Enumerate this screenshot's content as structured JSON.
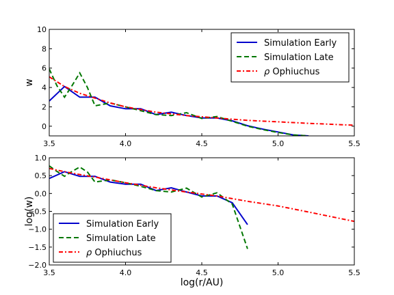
{
  "chart_data": [
    {
      "type": "line",
      "xlabel": "",
      "ylabel": "w",
      "xlim": [
        3.5,
        5.5
      ],
      "ylim": [
        -1,
        10
      ],
      "xticks": [
        "3.5",
        "4.0",
        "4.5",
        "5.0",
        "5.5"
      ],
      "yticks": [
        "0",
        "2",
        "4",
        "6",
        "8",
        "10"
      ],
      "legend": "top-right",
      "series": [
        {
          "name": "Simulation Early",
          "color": "#0000cc",
          "style": "solid",
          "x": [
            3.5,
            3.6,
            3.7,
            3.8,
            3.9,
            4.0,
            4.1,
            4.2,
            4.3,
            4.4,
            4.5,
            4.6,
            4.7,
            4.8,
            4.9,
            5.0,
            5.1,
            5.2
          ],
          "y": [
            2.6,
            4.1,
            3.0,
            3.0,
            2.1,
            1.8,
            1.8,
            1.2,
            1.45,
            1.1,
            0.85,
            0.85,
            0.55,
            0.05,
            -0.3,
            -0.6,
            -0.9,
            -1.0
          ]
        },
        {
          "name": "Simulation Late",
          "color": "#007700",
          "style": "dashed",
          "x": [
            3.5,
            3.55,
            3.6,
            3.65,
            3.7,
            3.75,
            3.8,
            3.9,
            4.0,
            4.1,
            4.2,
            4.3,
            4.4,
            4.5,
            4.6,
            4.7,
            4.8,
            4.9,
            5.0,
            5.1,
            5.2
          ],
          "y": [
            5.9,
            4.2,
            3.0,
            4.2,
            5.5,
            4.0,
            2.1,
            2.4,
            2.0,
            1.6,
            1.2,
            1.1,
            1.4,
            0.8,
            1.0,
            0.5,
            0.0,
            -0.35,
            -0.65,
            -0.9,
            -1.0
          ]
        },
        {
          "name": "Ophiuchus",
          "name_prefix": "ρ",
          "color": "#ff0000",
          "style": "dashdot",
          "x": [
            3.5,
            3.6,
            3.7,
            3.8,
            3.9,
            4.0,
            4.2,
            4.4,
            4.6,
            4.8,
            5.0,
            5.2,
            5.5
          ],
          "y": [
            5.1,
            4.1,
            3.4,
            2.9,
            2.4,
            2.0,
            1.45,
            1.1,
            0.85,
            0.6,
            0.45,
            0.3,
            0.1
          ]
        }
      ]
    },
    {
      "type": "line",
      "xlabel": "log(r/AU)",
      "ylabel": "log(w)",
      "xlim": [
        3.5,
        5.5
      ],
      "ylim": [
        -2.0,
        1.0
      ],
      "xticks": [
        "3.5",
        "4.0",
        "4.5",
        "5.0",
        "5.5"
      ],
      "yticks": [
        "1.0",
        "0.5",
        "0.0",
        "−0.5",
        "−1.0",
        "−1.5",
        "−2.0"
      ],
      "legend": "bottom-left",
      "series": [
        {
          "name": "Simulation Early",
          "color": "#0000cc",
          "style": "solid",
          "x": [
            3.5,
            3.6,
            3.7,
            3.8,
            3.9,
            4.0,
            4.1,
            4.2,
            4.3,
            4.4,
            4.5,
            4.6,
            4.7,
            4.8
          ],
          "y": [
            0.42,
            0.61,
            0.48,
            0.48,
            0.32,
            0.26,
            0.26,
            0.08,
            0.16,
            0.04,
            -0.07,
            -0.07,
            -0.26,
            -0.87
          ]
        },
        {
          "name": "Simulation Late",
          "color": "#007700",
          "style": "dashed",
          "x": [
            3.5,
            3.55,
            3.6,
            3.65,
            3.7,
            3.75,
            3.8,
            3.9,
            4.0,
            4.1,
            4.2,
            4.3,
            4.4,
            4.5,
            4.6,
            4.7,
            4.8
          ],
          "y": [
            0.77,
            0.62,
            0.48,
            0.62,
            0.74,
            0.6,
            0.32,
            0.38,
            0.3,
            0.2,
            0.08,
            0.04,
            0.15,
            -0.1,
            0.02,
            -0.3,
            -1.55
          ]
        },
        {
          "name": "Ophiuchus",
          "name_prefix": "ρ",
          "color": "#ff0000",
          "style": "dashdot",
          "x": [
            3.5,
            3.6,
            3.7,
            3.8,
            3.9,
            4.0,
            4.2,
            4.4,
            4.6,
            4.8,
            5.0,
            5.2,
            5.5
          ],
          "y": [
            0.7,
            0.61,
            0.53,
            0.46,
            0.38,
            0.3,
            0.16,
            0.04,
            -0.07,
            -0.22,
            -0.35,
            -0.52,
            -0.78
          ]
        }
      ]
    }
  ]
}
